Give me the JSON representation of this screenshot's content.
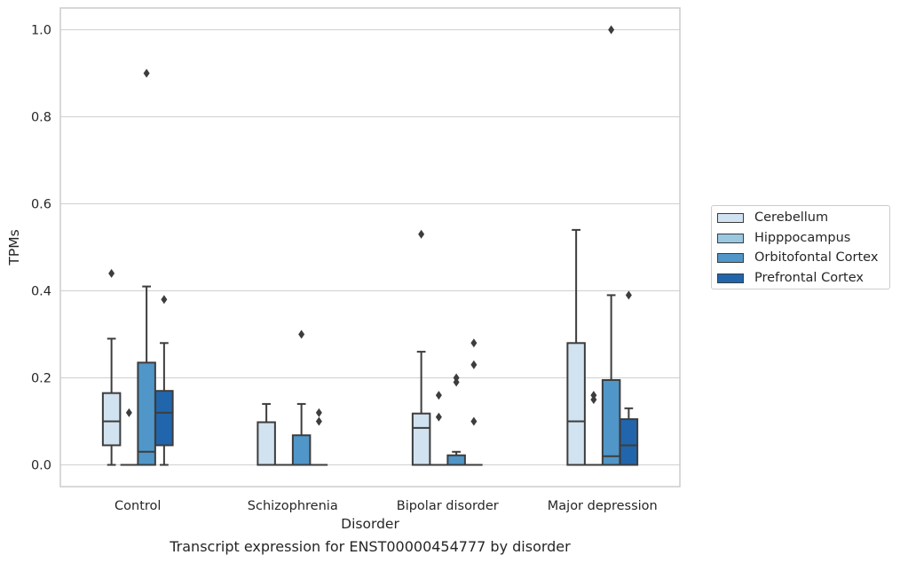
{
  "chart_data": {
    "type": "box",
    "xlabel": "Disorder",
    "ylabel": "TPMs",
    "categories": [
      "Control",
      "Schizophrenia",
      "Bipolar disorder",
      "Major depression"
    ],
    "ylim": [
      -0.05,
      1.05
    ],
    "yticks": [
      "0.0",
      "0.2",
      "0.4",
      "0.6",
      "0.8",
      "1.0"
    ],
    "grid": "horizontal",
    "legend_position": "right",
    "series": [
      {
        "name": "Cerebellum",
        "color": "#d1e2f1",
        "boxes": [
          {
            "q1": 0.045,
            "median": 0.1,
            "q3": 0.165,
            "whisker_low": 0.0,
            "whisker_high": 0.29,
            "outliers": [
              0.44
            ]
          },
          {
            "q1": 0.0,
            "median": 0.0,
            "q3": 0.098,
            "whisker_low": 0.0,
            "whisker_high": 0.14,
            "outliers": []
          },
          {
            "q1": 0.0,
            "median": 0.085,
            "q3": 0.118,
            "whisker_low": 0.0,
            "whisker_high": 0.26,
            "outliers": [
              0.53
            ]
          },
          {
            "q1": 0.0,
            "median": 0.1,
            "q3": 0.28,
            "whisker_low": 0.0,
            "whisker_high": 0.54,
            "outliers": []
          }
        ]
      },
      {
        "name": "Hipppocampus",
        "color": "#9ac8e0",
        "boxes": [
          {
            "q1": 0.0,
            "median": 0.0,
            "q3": 0.0,
            "whisker_low": 0.0,
            "whisker_high": 0.0,
            "outliers": [
              0.12
            ]
          },
          {
            "q1": 0.0,
            "median": 0.0,
            "q3": 0.0,
            "whisker_low": 0.0,
            "whisker_high": 0.0,
            "outliers": []
          },
          {
            "q1": 0.0,
            "median": 0.0,
            "q3": 0.0,
            "whisker_low": 0.0,
            "whisker_high": 0.0,
            "outliers": [
              0.11,
              0.16
            ]
          },
          {
            "q1": 0.0,
            "median": 0.0,
            "q3": 0.0,
            "whisker_low": 0.0,
            "whisker_high": 0.0,
            "outliers": [
              0.15,
              0.16
            ]
          }
        ]
      },
      {
        "name": "Orbitofontal Cortex",
        "color": "#5096c8",
        "boxes": [
          {
            "q1": 0.0,
            "median": 0.03,
            "q3": 0.235,
            "whisker_low": 0.0,
            "whisker_high": 0.41,
            "outliers": [
              0.9
            ]
          },
          {
            "q1": 0.0,
            "median": 0.0,
            "q3": 0.068,
            "whisker_low": 0.0,
            "whisker_high": 0.14,
            "outliers": [
              0.3
            ]
          },
          {
            "q1": 0.0,
            "median": 0.0,
            "q3": 0.022,
            "whisker_low": 0.0,
            "whisker_high": 0.03,
            "outliers": [
              0.19,
              0.2
            ]
          },
          {
            "q1": 0.0,
            "median": 0.02,
            "q3": 0.195,
            "whisker_low": 0.0,
            "whisker_high": 0.39,
            "outliers": [
              1.0
            ]
          }
        ]
      },
      {
        "name": "Prefrontal Cortex",
        "color": "#2166ac",
        "boxes": [
          {
            "q1": 0.045,
            "median": 0.12,
            "q3": 0.17,
            "whisker_low": 0.0,
            "whisker_high": 0.28,
            "outliers": [
              0.38
            ]
          },
          {
            "q1": 0.0,
            "median": 0.0,
            "q3": 0.0,
            "whisker_low": 0.0,
            "whisker_high": 0.0,
            "outliers": [
              0.1,
              0.12
            ]
          },
          {
            "q1": 0.0,
            "median": 0.0,
            "q3": 0.0,
            "whisker_low": 0.0,
            "whisker_high": 0.0,
            "outliers": [
              0.1,
              0.23,
              0.28
            ]
          },
          {
            "q1": 0.0,
            "median": 0.045,
            "q3": 0.105,
            "whisker_low": 0.0,
            "whisker_high": 0.13,
            "outliers": [
              0.39
            ]
          }
        ]
      }
    ]
  },
  "caption": "Transcript expression for ENST00000454777 by disorder"
}
